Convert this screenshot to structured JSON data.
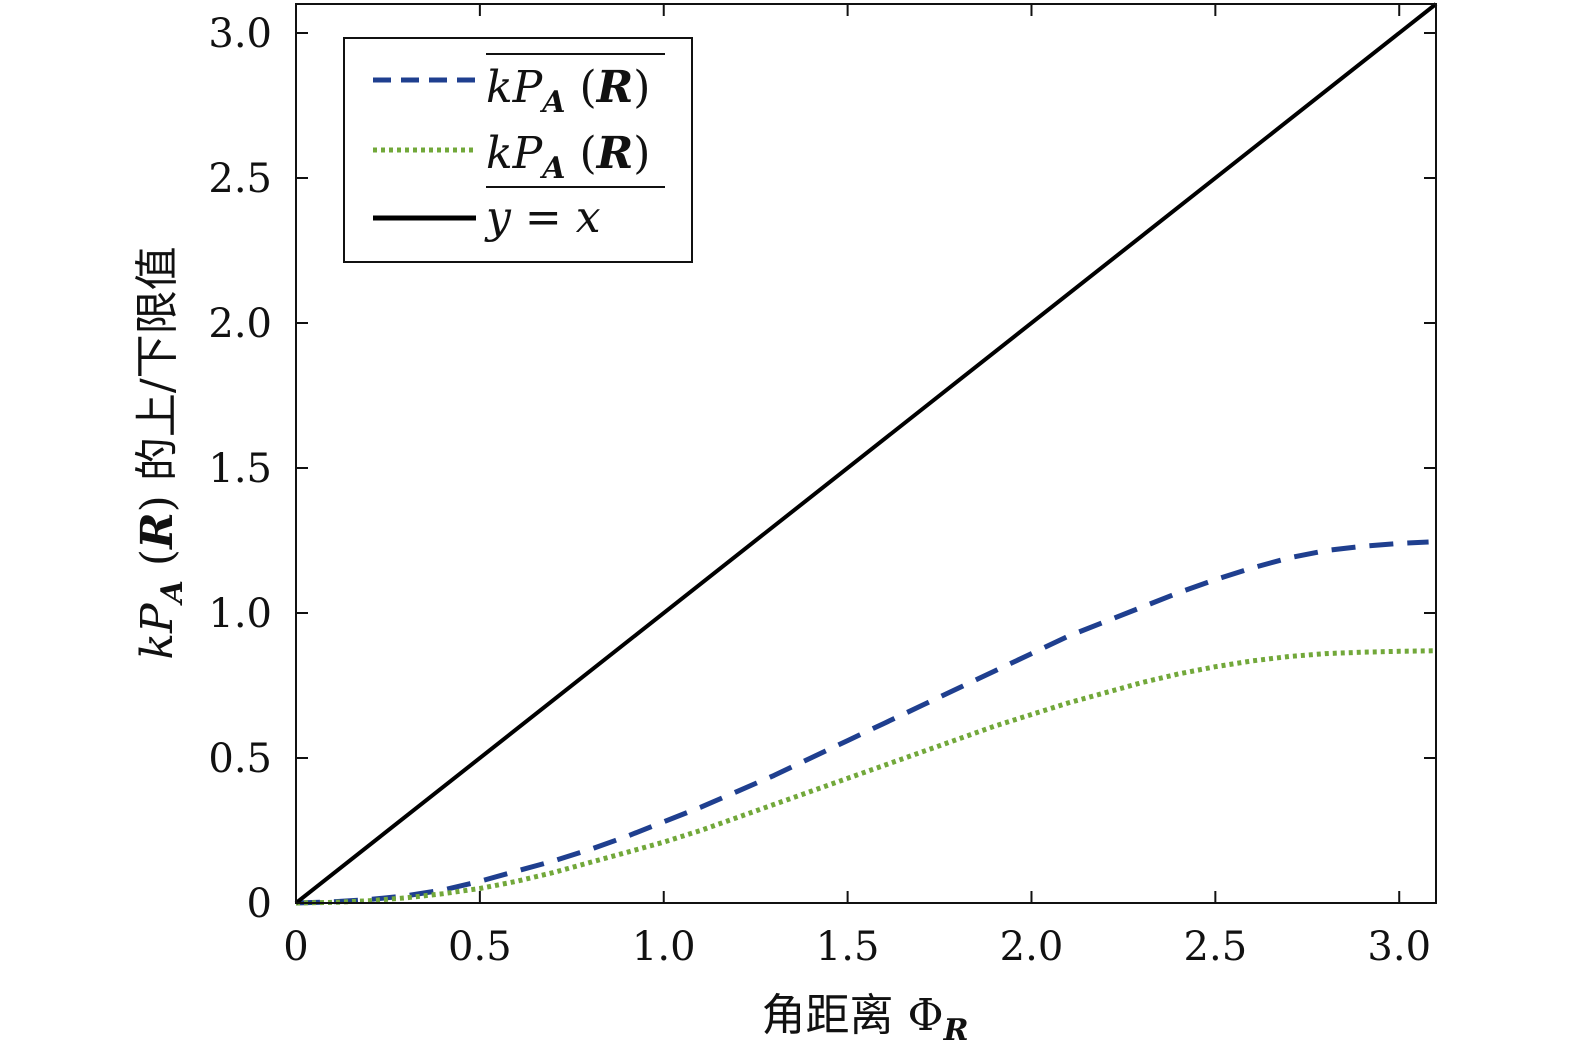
{
  "chart_data": {
    "type": "line",
    "xlabel": "角距离 Φ",
    "xlabel_sub": "R",
    "ylabel": {
      "prefix": "kP",
      "sub": "A",
      "paren_open": " (",
      "bold": "R",
      "paren_close": ")",
      "suffix": " 的上/下限值"
    },
    "xlim": [
      0,
      3.1
    ],
    "ylim": [
      0,
      3.1
    ],
    "xticks": [
      {
        "value": 0,
        "label": "0"
      },
      {
        "value": 0.5,
        "label": "0.5"
      },
      {
        "value": 1.0,
        "label": "1.0"
      },
      {
        "value": 1.5,
        "label": "1.5"
      },
      {
        "value": 2.0,
        "label": "2.0"
      },
      {
        "value": 2.5,
        "label": "2.5"
      },
      {
        "value": 3.0,
        "label": "3.0"
      }
    ],
    "yticks": [
      {
        "value": 0,
        "label": "0"
      },
      {
        "value": 0.5,
        "label": "0.5"
      },
      {
        "value": 1.0,
        "label": "1.0"
      },
      {
        "value": 1.5,
        "label": "1.5"
      },
      {
        "value": 2.0,
        "label": "2.0"
      },
      {
        "value": 2.5,
        "label": "2.5"
      },
      {
        "value": 3.0,
        "label": "3.0"
      }
    ],
    "grid": false,
    "legend_position": "top-left",
    "series": [
      {
        "legend": {
          "prefix": "kP",
          "sub": "A",
          "open": " (",
          "bold": "R",
          "close": ")",
          "bar": "overline"
        },
        "color": "#1f3f8f",
        "style": "dashed",
        "x": [
          0,
          0.1,
          0.2,
          0.3,
          0.4,
          0.5,
          0.6,
          0.7,
          0.8,
          0.9,
          1.0,
          1.1,
          1.2,
          1.3,
          1.4,
          1.5,
          1.6,
          1.7,
          1.8,
          1.9,
          2.0,
          2.1,
          2.2,
          2.3,
          2.4,
          2.5,
          2.6,
          2.7,
          2.8,
          2.9,
          3.0,
          3.08
        ],
        "y": [
          0,
          0.004,
          0.012,
          0.025,
          0.045,
          0.075,
          0.11,
          0.145,
          0.185,
          0.23,
          0.28,
          0.33,
          0.385,
          0.44,
          0.5,
          0.56,
          0.62,
          0.68,
          0.74,
          0.8,
          0.86,
          0.92,
          0.97,
          1.02,
          1.07,
          1.115,
          1.155,
          1.19,
          1.215,
          1.23,
          1.24,
          1.245
        ]
      },
      {
        "legend": {
          "prefix": "kP",
          "sub": "A",
          "open": " (",
          "bold": "R",
          "close": ")",
          "bar": "underline"
        },
        "color": "#72a83a",
        "style": "dotted",
        "x": [
          0,
          0.1,
          0.2,
          0.3,
          0.4,
          0.5,
          0.6,
          0.7,
          0.8,
          0.9,
          1.0,
          1.1,
          1.2,
          1.3,
          1.4,
          1.5,
          1.6,
          1.7,
          1.8,
          1.9,
          2.0,
          2.1,
          2.2,
          2.3,
          2.4,
          2.5,
          2.6,
          2.7,
          2.8,
          2.9,
          3.0,
          3.1
        ],
        "y": [
          0,
          0.002,
          0.008,
          0.018,
          0.032,
          0.05,
          0.075,
          0.105,
          0.14,
          0.175,
          0.21,
          0.25,
          0.295,
          0.34,
          0.385,
          0.43,
          0.475,
          0.52,
          0.565,
          0.61,
          0.65,
          0.69,
          0.725,
          0.76,
          0.79,
          0.815,
          0.835,
          0.85,
          0.86,
          0.865,
          0.868,
          0.87
        ]
      },
      {
        "legend": {
          "text": "y = x"
        },
        "color": "#000000",
        "style": "solid",
        "x": [
          0,
          3.1
        ],
        "y": [
          0,
          3.1
        ]
      }
    ]
  }
}
